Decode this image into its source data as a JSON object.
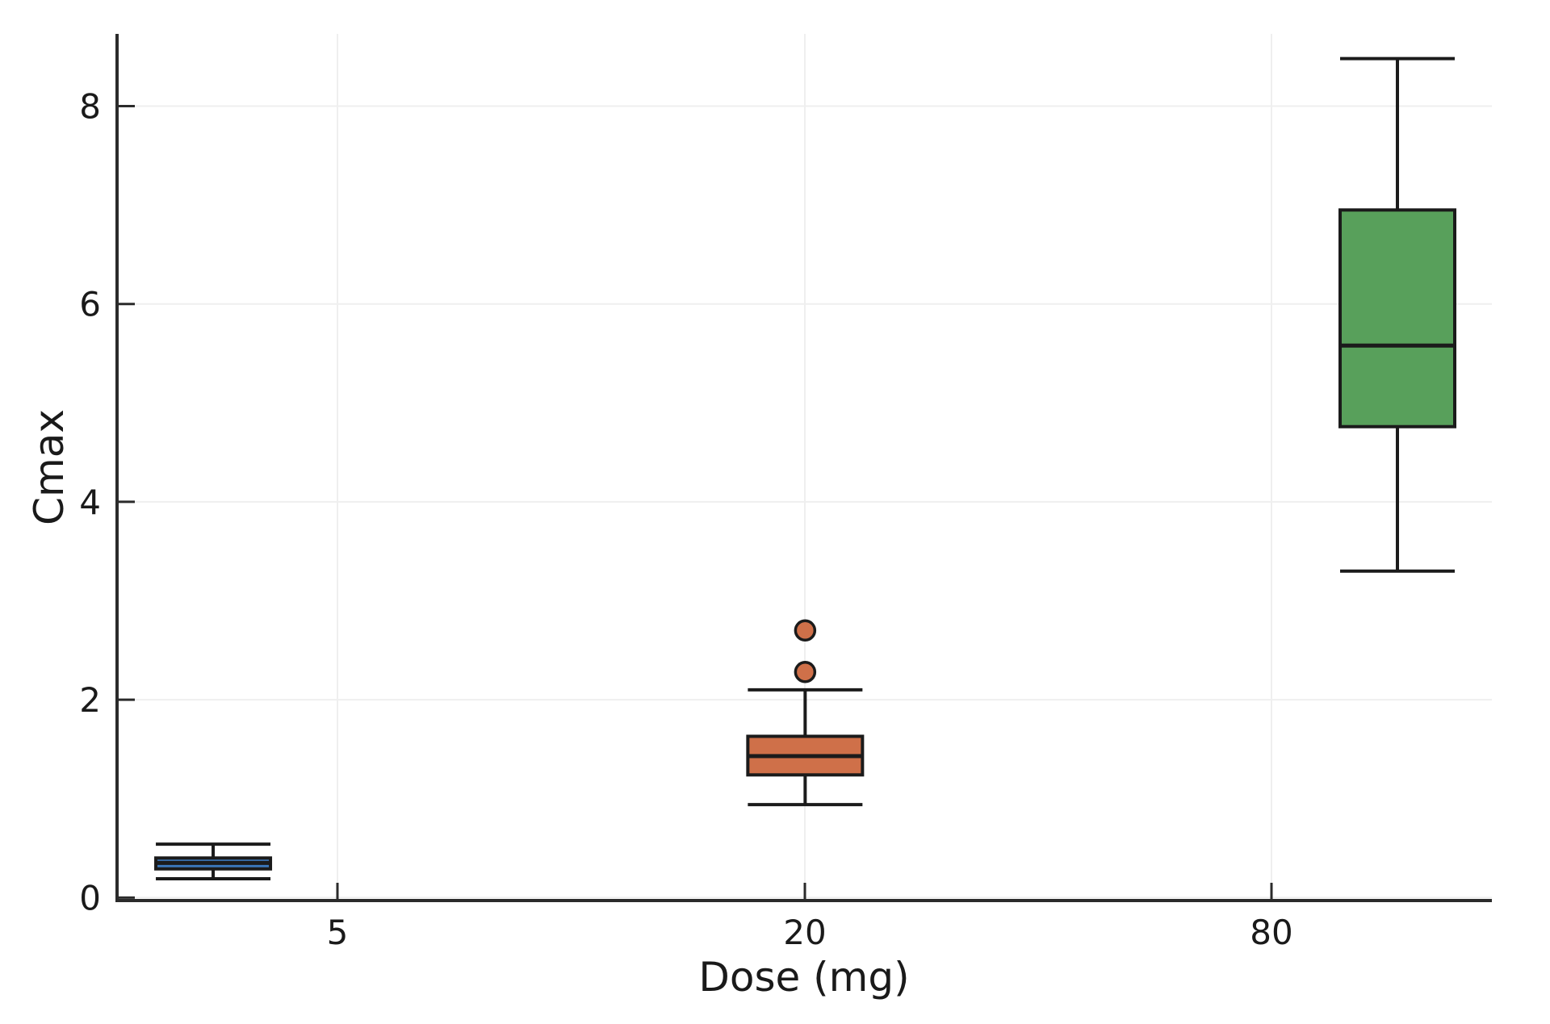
{
  "figure": {
    "background": "#ffffff"
  },
  "chart_data": {
    "type": "box",
    "title": "",
    "xlabel": "Dose (mg)",
    "ylabel": "Cmax",
    "x_categories": [
      "5",
      "20",
      "80"
    ],
    "y_ticks": [
      0,
      2,
      4,
      6,
      8
    ],
    "ylim": [
      -0.03,
      8.73
    ],
    "grid": true,
    "legend_position": "none",
    "groups": [
      {
        "dose_label": "5",
        "fill": "#3B78BC",
        "stats": {
          "whisker_low": 0.19,
          "q1": 0.29,
          "median": 0.35,
          "q3": 0.4,
          "whisker_high": 0.54
        },
        "outliers": []
      },
      {
        "dose_label": "20",
        "fill": "#CF7049",
        "stats": {
          "whisker_low": 0.94,
          "q1": 1.24,
          "median": 1.43,
          "q3": 1.63,
          "whisker_high": 2.1
        },
        "outliers": [
          2.28,
          2.7
        ]
      },
      {
        "dose_label": "80",
        "fill": "#58A05B",
        "stats": {
          "whisker_low": 3.3,
          "q1": 4.76,
          "median": 5.58,
          "q3": 6.95,
          "whisker_high": 8.48
        },
        "outliers": []
      }
    ],
    "colors": {
      "box_edge": "#1b1b1b",
      "axis": "#2b2b2b",
      "grid": "#efefef",
      "text": "#1a1a1a"
    }
  }
}
